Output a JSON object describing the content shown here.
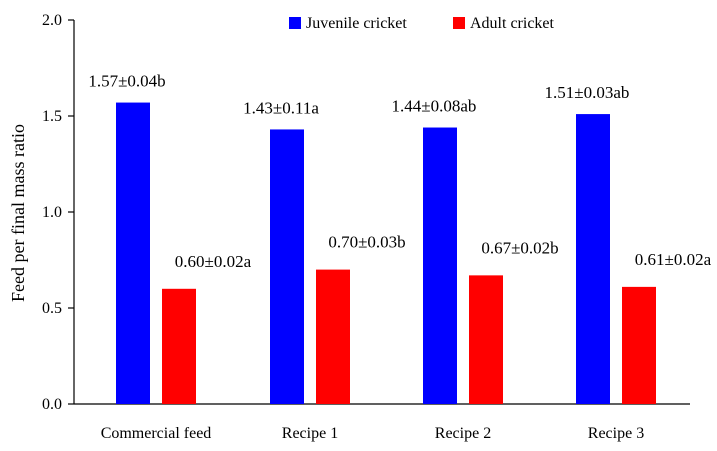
{
  "chart_data": {
    "type": "bar",
    "title": "",
    "xlabel": "",
    "ylabel": "Feed per final mass ratio",
    "ylim": [
      0,
      2.0
    ],
    "yticks": [
      0.0,
      0.5,
      1.0,
      1.5,
      2.0
    ],
    "ytick_labels": [
      "0.0",
      "0.5",
      "1.0",
      "1.5",
      "2.0"
    ],
    "grid": false,
    "legend_position": "top-right",
    "categories": [
      "Commercial feed",
      "Recipe 1",
      "Recipe 2",
      "Recipe 3"
    ],
    "series": [
      {
        "name": "Juvenile cricket",
        "color": "#0000ff",
        "values": [
          1.57,
          1.43,
          1.44,
          1.51
        ],
        "labels": [
          "1.57±0.04b",
          "1.43±0.11a",
          "1.44±0.08ab",
          "1.51±0.03ab"
        ]
      },
      {
        "name": "Adult cricket",
        "color": "#ff0000",
        "values": [
          0.6,
          0.7,
          0.67,
          0.61
        ],
        "labels": [
          "0.60±0.02a",
          "0.70±0.03b",
          "0.67±0.02b",
          "0.61±0.02a"
        ]
      }
    ]
  }
}
